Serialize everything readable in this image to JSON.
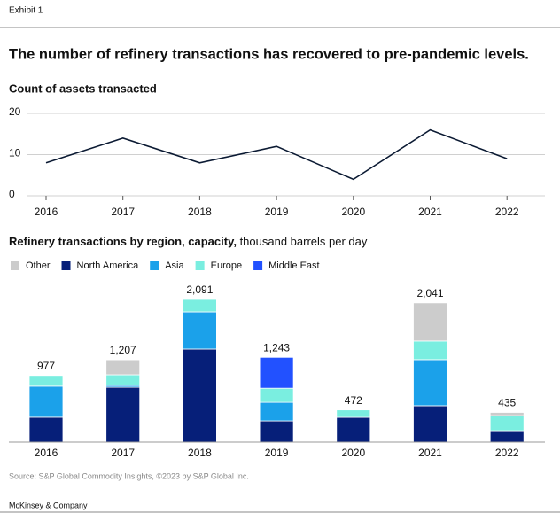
{
  "header": {
    "exhibit": "Exhibit 1",
    "title": "The number of refinery transactions has recovered to pre-pandemic levels."
  },
  "chart_data": [
    {
      "type": "line",
      "title": "Count of assets transacted",
      "categories": [
        "2016",
        "2017",
        "2018",
        "2019",
        "2020",
        "2021",
        "2022"
      ],
      "values": [
        8,
        14,
        8,
        12,
        4,
        16,
        9
      ],
      "color": "#0b1a33",
      "ylim": [
        0,
        20
      ],
      "yticks": [
        0,
        10,
        20
      ],
      "grid": true
    },
    {
      "type": "stacked_bar",
      "title": "Refinery transactions by region, capacity,",
      "units": " thousand barrels per day",
      "categories": [
        "2016",
        "2017",
        "2018",
        "2019",
        "2020",
        "2021",
        "2022"
      ],
      "series": [
        {
          "name": "Other",
          "color": "#cccccc",
          "values": [
            0,
            220,
            0,
            0,
            0,
            559,
            47
          ]
        },
        {
          "name": "North America",
          "color": "#061f79",
          "values": [
            365,
            805,
            1364,
            311,
            363,
            533,
            155
          ]
        },
        {
          "name": "Asia",
          "color": "#1ba1ea",
          "values": [
            455,
            25,
            545,
            272,
            0,
            676,
            13
          ]
        },
        {
          "name": "Europe",
          "color": "#7aeee0",
          "values": [
            157,
            157,
            182,
            207,
            109,
            273,
            220
          ]
        },
        {
          "name": "Middle East",
          "color": "#2251ff",
          "values": [
            0,
            0,
            0,
            453,
            0,
            0,
            0
          ]
        }
      ],
      "totals": {
        "values": [
          977,
          1207,
          2091,
          1243,
          472,
          2041,
          435
        ],
        "value_labels": [
          "977",
          "1,207",
          "2,091",
          "1,243",
          "472",
          "2,041",
          "435"
        ]
      },
      "legend": "top-left"
    }
  ],
  "footer": {
    "source": "Source: S&P Global Commodity Insights, ©2023 by S&P Global Inc.",
    "brand": "McKinsey & Company"
  }
}
